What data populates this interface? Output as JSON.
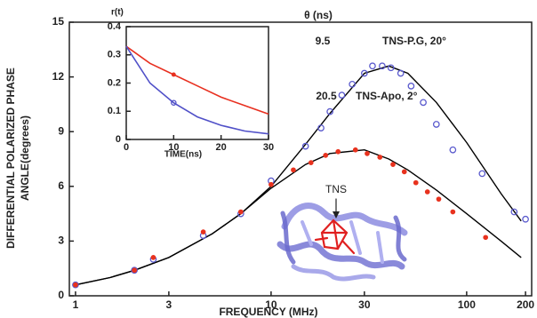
{
  "chart_data": [
    {
      "type": "scatter",
      "ylabel": [
        "DIFFERENTIAL POLARIZED PHASE",
        "ANGLE(degrees)"
      ],
      "xlabel": "FREQUENCY (MHz)",
      "theta_header": "θ (ns)",
      "protein_label": "TNS",
      "xscale": "log",
      "xlim": [
        0.93,
        215
      ],
      "xticks": [
        1,
        3,
        10,
        30,
        100,
        200
      ],
      "ylim": [
        0,
        15
      ],
      "yticks": [
        0,
        3,
        6,
        9,
        12,
        15
      ],
      "series": [
        {
          "name": "TNS-P.G, 20°",
          "theta": 9.5,
          "color": "#5a5acd",
          "marker": "open",
          "x": [
            1,
            2,
            2.5,
            4.5,
            7,
            10,
            15,
            18,
            20,
            23,
            26,
            30,
            33,
            37,
            41,
            46,
            52,
            60,
            70,
            85,
            120,
            175,
            200
          ],
          "values": [
            0.6,
            1.4,
            2.0,
            3.3,
            4.5,
            6.3,
            8.2,
            9.2,
            10.1,
            11.0,
            11.6,
            12.2,
            12.6,
            12.6,
            12.5,
            12.2,
            11.5,
            10.6,
            9.4,
            8.0,
            6.7,
            4.6,
            4.2
          ]
        },
        {
          "name": "TNS-Apo, 2°",
          "theta": 20.5,
          "color": "#e8321e",
          "marker": "filled",
          "x": [
            1,
            2,
            2.5,
            4.5,
            7,
            10,
            13,
            16,
            19,
            22,
            27,
            31,
            36,
            42,
            48,
            55,
            63,
            72,
            85,
            125
          ],
          "values": [
            0.6,
            1.4,
            2.1,
            3.5,
            4.6,
            6.1,
            6.9,
            7.3,
            7.7,
            7.9,
            8.0,
            7.8,
            7.6,
            7.2,
            6.8,
            6.2,
            5.7,
            5.3,
            4.6,
            3.2
          ]
        }
      ],
      "fit_x": [
        1,
        1.5,
        2,
        3,
        5,
        7,
        10,
        15,
        20,
        30,
        40,
        50,
        70,
        100,
        150,
        190
      ],
      "fits": [
        {
          "color": "#000000",
          "values": [
            0.6,
            1.0,
            1.4,
            2.1,
            3.4,
            4.5,
            6.0,
            8.3,
            10.0,
            12.2,
            12.6,
            12.2,
            10.6,
            8.4,
            5.6,
            4.1
          ]
        },
        {
          "color": "#000000",
          "values": [
            0.6,
            1.0,
            1.4,
            2.1,
            3.4,
            4.5,
            5.9,
            7.2,
            7.8,
            8.0,
            7.5,
            6.9,
            5.8,
            4.5,
            3.0,
            2.1
          ]
        }
      ]
    },
    {
      "type": "line",
      "ylabel": "r(t)",
      "xlabel": "TIME(ns)",
      "xlim": [
        0,
        30
      ],
      "xticks": [
        0,
        10,
        20,
        30
      ],
      "ylim": [
        0,
        0.4
      ],
      "yticks": [
        0,
        0.1,
        0.2,
        0.3,
        0.4
      ],
      "x": [
        0,
        5,
        10,
        15,
        20,
        25,
        30
      ],
      "series": [
        {
          "color": "#e83020",
          "marker": "filled",
          "values": [
            0.33,
            0.27,
            0.23,
            0.19,
            0.15,
            0.12,
            0.09
          ],
          "points": {
            "x": [
              10
            ],
            "values": [
              0.23
            ]
          }
        },
        {
          "color": "#5050c8",
          "marker": "open",
          "values": [
            0.33,
            0.2,
            0.13,
            0.08,
            0.05,
            0.03,
            0.02
          ],
          "points": {
            "x": [
              10
            ],
            "values": [
              0.13
            ]
          }
        }
      ]
    }
  ]
}
